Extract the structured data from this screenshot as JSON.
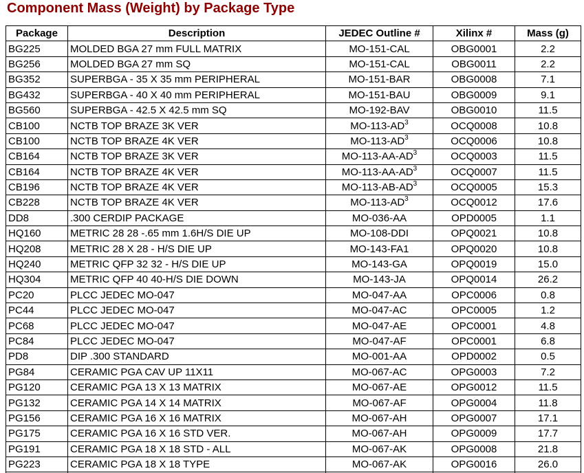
{
  "title": "Component Mass (Weight) by Package Type",
  "colors": {
    "title_text": "#8B0000",
    "table_border": "#000000",
    "body_text": "#000000",
    "background": "#FFFFFF"
  },
  "table": {
    "columns": [
      {
        "key": "package",
        "label": "Package"
      },
      {
        "key": "description",
        "label": "Description"
      },
      {
        "key": "jedec",
        "label": "JEDEC Outline #"
      },
      {
        "key": "xilinx",
        "label": "Xilinx #"
      },
      {
        "key": "mass",
        "label": "Mass (g)"
      }
    ],
    "rows": [
      {
        "package": "BG225",
        "description": "MOLDED BGA 27 mm FULL MATRIX",
        "jedec": "MO-151-CAL",
        "jedec_sup": "",
        "xilinx": "OBG0001",
        "mass": "2.2"
      },
      {
        "package": "BG256",
        "description": "MOLDED BGA 27 mm SQ",
        "jedec": "MO-151-CAL",
        "jedec_sup": "",
        "xilinx": "OBG0011",
        "mass": "2.2"
      },
      {
        "package": "BG352",
        "description": "SUPERBGA - 35 X 35 mm PERIPHERAL",
        "jedec": "MO-151-BAR",
        "jedec_sup": "",
        "xilinx": "OBG0008",
        "mass": "7.1"
      },
      {
        "package": "BG432",
        "description": "SUPERBGA - 40 X 40 mm PERIPHERAL",
        "jedec": "MO-151-BAU",
        "jedec_sup": "",
        "xilinx": "OBG0009",
        "mass": "9.1"
      },
      {
        "package": "BG560",
        "description": "SUPERBGA - 42.5 X 42.5 mm SQ",
        "jedec": "MO-192-BAV",
        "jedec_sup": "",
        "xilinx": "OBG0010",
        "mass": "11.5"
      },
      {
        "package": "CB100",
        "description": "NCTB TOP BRAZE 3K VER",
        "jedec": "MO-113-AD",
        "jedec_sup": "3",
        "xilinx": "OCQ0008",
        "mass": "10.8"
      },
      {
        "package": "CB100",
        "description": "NCTB TOP BRAZE 4K VER",
        "jedec": "MO-113-AD",
        "jedec_sup": "3",
        "xilinx": "OCQ0006",
        "mass": "10.8"
      },
      {
        "package": "CB164",
        "description": "NCTB TOP BRAZE 3K VER",
        "jedec": "MO-113-AA-AD",
        "jedec_sup": "3",
        "xilinx": "OCQ0003",
        "mass": "11.5"
      },
      {
        "package": "CB164",
        "description": "NCTB TOP BRAZE 4K VER",
        "jedec": "MO-113-AA-AD",
        "jedec_sup": "3",
        "xilinx": "OCQ0007",
        "mass": "11.5"
      },
      {
        "package": "CB196",
        "description": "NCTB TOP BRAZE 4K VER",
        "jedec": "MO-113-AB-AD",
        "jedec_sup": "3",
        "xilinx": "OCQ0005",
        "mass": "15.3"
      },
      {
        "package": "CB228",
        "description": "NCTB TOP BRAZE 4K VER",
        "jedec": "MO-113-AD",
        "jedec_sup": "3",
        "xilinx": "OCQ0012",
        "mass": "17.6"
      },
      {
        "package": "DD8",
        "description": ".300 CERDIP PACKAGE",
        "jedec": "MO-036-AA",
        "jedec_sup": "",
        "xilinx": "OPD0005",
        "mass": "1.1"
      },
      {
        "package": "HQ160",
        "description": "METRIC 28 28 -.65 mm 1.6H/S DIE UP",
        "jedec": "MO-108-DDI",
        "jedec_sup": "",
        "xilinx": "OPQ0021",
        "mass": "10.8"
      },
      {
        "package": "HQ208",
        "description": "METRIC 28 X 28 - H/S DIE UP",
        "jedec": "MO-143-FA1",
        "jedec_sup": "",
        "xilinx": "OPQ0020",
        "mass": "10.8"
      },
      {
        "package": "HQ240",
        "description": "METRIC QFP 32 32 - H/S DIE UP",
        "jedec": "MO-143-GA",
        "jedec_sup": "",
        "xilinx": "OPQ0019",
        "mass": "15.0"
      },
      {
        "package": "HQ304",
        "description": "METRIC QFP 40 40-H/S DIE DOWN",
        "jedec": "MO-143-JA",
        "jedec_sup": "",
        "xilinx": "OPQ0014",
        "mass": "26.2"
      },
      {
        "package": "PC20",
        "description": "PLCC JEDEC MO-047",
        "jedec": "MO-047-AA",
        "jedec_sup": "",
        "xilinx": "OPC0006",
        "mass": "0.8"
      },
      {
        "package": "PC44",
        "description": "PLCC JEDEC MO-047",
        "jedec": "MO-047-AC",
        "jedec_sup": "",
        "xilinx": "OPC0005",
        "mass": "1.2"
      },
      {
        "package": "PC68",
        "description": "PLCC JEDEC MO-047",
        "jedec": "MO-047-AE",
        "jedec_sup": "",
        "xilinx": "OPC0001",
        "mass": "4.8"
      },
      {
        "package": "PC84",
        "description": "PLCC JEDEC MO-047",
        "jedec": "MO-047-AF",
        "jedec_sup": "",
        "xilinx": "OPC0001",
        "mass": "6.8"
      },
      {
        "package": "PD8",
        "description": "DIP .300 STANDARD",
        "jedec": "MO-001-AA",
        "jedec_sup": "",
        "xilinx": "OPD0002",
        "mass": "0.5"
      },
      {
        "package": "PG84",
        "description": "CERAMIC PGA CAV UP 11X11",
        "jedec": "MO-067-AC",
        "jedec_sup": "",
        "xilinx": "OPG0003",
        "mass": "7.2"
      },
      {
        "package": "PG120",
        "description": "CERAMIC PGA 13 X 13 MATRIX",
        "jedec": "MO-067-AE",
        "jedec_sup": "",
        "xilinx": "OPG0012",
        "mass": "11.5"
      },
      {
        "package": "PG132",
        "description": "CERAMIC PGA 14 X 14 MATRIX",
        "jedec": "MO-067-AF",
        "jedec_sup": "",
        "xilinx": "OPG0004",
        "mass": "11.8"
      },
      {
        "package": "PG156",
        "description": "CERAMIC PGA 16 X 16 MATRIX",
        "jedec": "MO-067-AH",
        "jedec_sup": "",
        "xilinx": "OPG0007",
        "mass": "17.1"
      },
      {
        "package": "PG175",
        "description": "CERAMIC PGA 16 X 16 STD VER.",
        "jedec": "MO-067-AH",
        "jedec_sup": "",
        "xilinx": "OPG0009",
        "mass": "17.7"
      },
      {
        "package": "PG191",
        "description": "CERAMIC PGA 18 X 18 STD - ALL",
        "jedec": "MO-067-AK",
        "jedec_sup": "",
        "xilinx": "OPG0008",
        "mass": "21.8"
      },
      {
        "package": "PG223",
        "description": "CERAMIC PGA 18 X 18 TYPE",
        "jedec": "MO-067-AK",
        "jedec_sup": "",
        "xilinx": "OPG0016",
        "mass": "26.0"
      }
    ]
  }
}
